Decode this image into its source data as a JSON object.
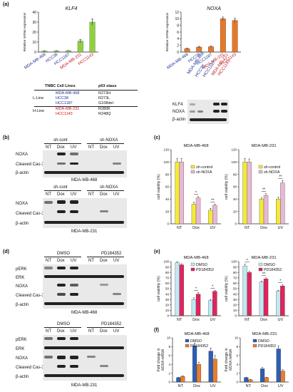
{
  "panels": {
    "a": "(a)",
    "b": "(b)",
    "c": "(c)",
    "d": "(d)",
    "e": "(e)",
    "f": "(f)"
  },
  "a": {
    "klf4_title": "KLF4",
    "noxa_title": "NOXA",
    "ylabel": "Relative mRNA expression",
    "cell_lines": [
      "MDA-MB-468",
      "HCC38",
      "HCC1187",
      "MDA-MB-231",
      "HCC1143"
    ],
    "table": {
      "col1": "TNBC Cell Lines",
      "col2": "p53 staus",
      "l_line": "L-Line",
      "h_line": "H-Line",
      "rows": [
        {
          "line": "MDA-MB-468",
          "p53": "R273H"
        },
        {
          "line": "HCC38",
          "p53": "R273L"
        },
        {
          "line": "HCC1187",
          "p53": "G108del"
        },
        {
          "line": "MDA-MB-231",
          "p53": "R280K"
        },
        {
          "line": "HCC1143",
          "p53": "R248Q"
        }
      ]
    },
    "blot_labels": [
      "KLF4",
      "NOXA",
      "β-actin"
    ]
  },
  "b": {
    "groups": [
      "sh-cont",
      "sh-NOXA"
    ],
    "lanes": [
      "NT",
      "Dox",
      "UV",
      "NT",
      "Dox",
      "UV"
    ],
    "rows": [
      "NOXA",
      "Cleaved Cas-3",
      "β-actin"
    ],
    "cell1": "MDA-MB-468",
    "cell2": "MDA-MB-231"
  },
  "c": {
    "ylabel": "cell viability (%)",
    "legend": [
      "sh-control",
      "sh-NOXA"
    ],
    "star": "*",
    "dstar": "**"
  },
  "d": {
    "groups": [
      "DMSO",
      "PD184352"
    ],
    "lanes": [
      "NT",
      "Dox",
      "UV",
      "NT",
      "Dox",
      "UV"
    ],
    "rows": [
      "pERK",
      "ERK",
      "NOXA",
      "Cleaved Cas-3",
      "β-actin"
    ],
    "cell1": "MDA-MB-468",
    "cell2": "MDA-MB-231"
  },
  "e": {
    "ylabel": "cell viability (%)",
    "legend": [
      "DMSO",
      "PD184352"
    ]
  },
  "f": {
    "ylabel_prefix": "Fold change in",
    "ylabel_em": "NOXA mRNA",
    "legend": [
      "DMSO",
      "PD184352"
    ]
  },
  "colors": {
    "blue_label": "#1f2f9a",
    "red_label": "#c0181a",
    "green_bar": "#8fd13d",
    "orange_bar": "#e6782a",
    "yellow_bar": "#f3ea3a",
    "pink_bar": "#e8b7d6",
    "cyan_bar": "#bfe8f2",
    "crimson_bar": "#e0245e",
    "blue_bar": "#2d5eb5",
    "orange2_bar": "#ea7d29"
  },
  "chart_data": [
    {
      "id": "a-klf4",
      "type": "bar",
      "title": "KLF4",
      "ylabel": "Relative mRNA expression",
      "categories": [
        "MDA-MB-468",
        "HCC38",
        "HCC1187",
        "MDA-MB-231",
        "HCC1143"
      ],
      "values": [
        1,
        1.1,
        1.3,
        11,
        30
      ],
      "errors": [
        0.2,
        0.2,
        0.2,
        1.5,
        3
      ],
      "ylim": [
        0,
        40
      ],
      "yticks": [
        0,
        10,
        20,
        30,
        40
      ]
    },
    {
      "id": "a-noxa",
      "type": "bar",
      "title": "NOXA",
      "ylabel": "Relative mRNA expression",
      "categories": [
        "MDA-MB-468",
        "HCC38",
        "HCC1187",
        "MDA-MB-231",
        "HCC1143"
      ],
      "values": [
        1,
        1.5,
        1.6,
        10,
        9.5
      ],
      "errors": [
        0.15,
        0.2,
        0.2,
        0.5,
        0.6
      ],
      "ylim": [
        0,
        12
      ],
      "yticks": [
        0,
        2,
        4,
        6,
        8,
        10,
        12
      ]
    },
    {
      "id": "c-468",
      "type": "bar",
      "title": "MDA-MB-468",
      "ylabel": "cell viability (%)",
      "categories": [
        "NT",
        "Dox",
        "UV"
      ],
      "ylim": [
        0,
        120
      ],
      "yticks": [
        0,
        20,
        40,
        60,
        80,
        100,
        120
      ],
      "series": [
        {
          "name": "sh-control",
          "values": [
            100,
            32,
            22
          ],
          "errors": [
            6,
            3,
            3
          ]
        },
        {
          "name": "sh-NOXA",
          "values": [
            100,
            42,
            30
          ],
          "errors": [
            6,
            2,
            2
          ]
        }
      ]
    },
    {
      "id": "c-231",
      "type": "bar",
      "title": "MDA-MB-231",
      "ylabel": "cell viability (%)",
      "categories": [
        "NT",
        "Dox",
        "UV"
      ],
      "ylim": [
        0,
        120
      ],
      "yticks": [
        0,
        20,
        40,
        60,
        80,
        100,
        120
      ],
      "series": [
        {
          "name": "sh-control",
          "values": [
            100,
            40,
            40
          ],
          "errors": [
            6,
            2,
            3
          ]
        },
        {
          "name": "sh-NOXA",
          "values": [
            100,
            46,
            66
          ],
          "errors": [
            5,
            3,
            4
          ]
        }
      ]
    },
    {
      "id": "e-468",
      "type": "bar",
      "title": "MDA-MB-468",
      "ylabel": "cell viability (%)",
      "categories": [
        "NT",
        "Dox",
        "UV"
      ],
      "ylim": [
        0,
        100
      ],
      "yticks": [
        0,
        10,
        20,
        30,
        40,
        50,
        60,
        70,
        80,
        90,
        100
      ],
      "series": [
        {
          "name": "DMSO",
          "values": [
            98,
            30,
            28
          ],
          "errors": [
            2,
            3,
            2
          ]
        },
        {
          "name": "PD184352",
          "values": [
            94,
            40,
            45
          ],
          "errors": [
            2,
            3,
            2
          ]
        }
      ]
    },
    {
      "id": "e-231",
      "type": "bar",
      "title": "MDA-MB-231",
      "ylabel": "cell viability (%)",
      "categories": [
        "NT",
        "Dox",
        "UV"
      ],
      "ylim": [
        0,
        100
      ],
      "yticks": [
        0,
        10,
        20,
        30,
        40,
        50,
        60,
        70,
        80,
        90,
        100
      ],
      "series": [
        {
          "name": "DMSO",
          "values": [
            92,
            62,
            45
          ],
          "errors": [
            3,
            2,
            2
          ]
        },
        {
          "name": "PD184352",
          "values": [
            80,
            68,
            55
          ],
          "errors": [
            2,
            2,
            2
          ]
        }
      ]
    },
    {
      "id": "f-468",
      "type": "bar",
      "title": "MDA-MB-468",
      "ylabel": "Fold change in NOXA mRNA",
      "categories": [
        "NT",
        "Dox",
        "UV"
      ],
      "ylim": [
        0,
        10
      ],
      "yticks": [
        0,
        2,
        4,
        6,
        8,
        10
      ],
      "series": [
        {
          "name": "DMSO",
          "values": [
            1,
            8.2,
            7.0
          ],
          "errors": [
            0.1,
            0.6,
            0.7
          ]
        },
        {
          "name": "PD184352",
          "values": [
            1.3,
            4.0,
            5.2
          ],
          "errors": [
            0.1,
            0.5,
            0.8
          ]
        }
      ]
    },
    {
      "id": "f-231",
      "type": "bar",
      "title": "MDA-MB-231",
      "ylabel": "Fold change in NOXA mRNA",
      "categories": [
        "NT",
        "Dox",
        "UV"
      ],
      "ylim": [
        0,
        10
      ],
      "yticks": [
        0,
        2,
        4,
        6,
        8,
        10
      ],
      "series": [
        {
          "name": "DMSO",
          "values": [
            1,
            3,
            7.5
          ],
          "errors": [
            0.1,
            0.3,
            0.7
          ]
        },
        {
          "name": "PD184352",
          "values": [
            0.5,
            1.0,
            2.5
          ],
          "errors": [
            0.1,
            0.1,
            0.3
          ]
        }
      ]
    }
  ]
}
